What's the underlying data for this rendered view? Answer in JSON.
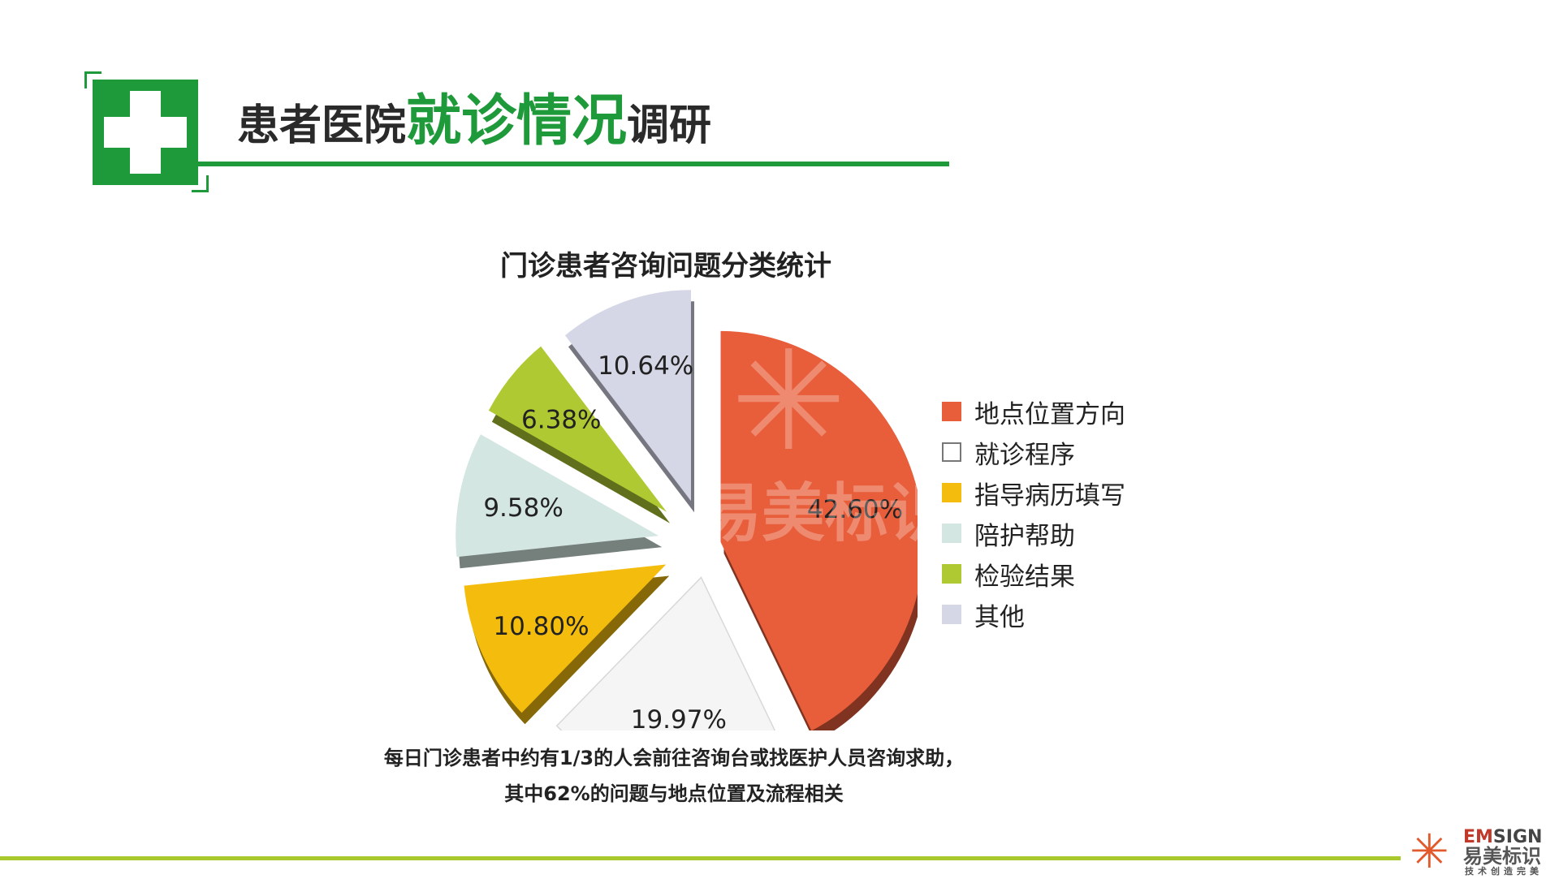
{
  "header": {
    "title_part1": "患者医院",
    "title_part2": "就诊情况",
    "title_part3": "调研",
    "accent_color": "#1f9a3a"
  },
  "chart_data": {
    "type": "pie",
    "title": "门诊患者咨询问题分类统计",
    "categories": [
      "地点位置方向",
      "就诊程序",
      "指导病历填写",
      "陪护帮助",
      "检验结果",
      "其他"
    ],
    "values": [
      42.6,
      19.97,
      10.8,
      9.58,
      6.38,
      10.64
    ],
    "value_labels": [
      "42.60%",
      "19.97%",
      "10.80%",
      "9.58%",
      "6.38%",
      "10.64%"
    ],
    "colors": [
      "#e85d3a",
      "#f5f5f5",
      "#f4bd0e",
      "#d4e6e2",
      "#afc932",
      "#d5d7e6"
    ],
    "legend_position": "right",
    "exploded": true,
    "style": "3d"
  },
  "caption": {
    "line1": "每日门诊患者中约有1/3的人会前往咨询台或找医护人员咨询求助，",
    "line2": "其中62%的问题与地点位置及流程相关"
  },
  "watermark": {
    "star": "✳",
    "text": "易美标识"
  },
  "logo": {
    "star": "✳",
    "en_em": "EM",
    "en_rest": "SIGN",
    "cn": "易美标识",
    "slogan": "技术创造完美"
  }
}
